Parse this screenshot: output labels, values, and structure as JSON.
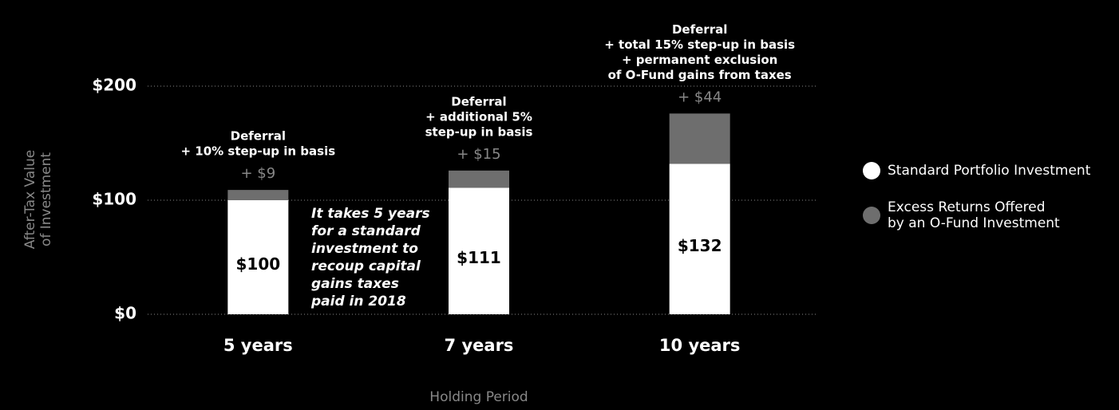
{
  "chart_data": {
    "type": "stacked_bar",
    "categories": [
      "5 years",
      "7 years",
      "10 years"
    ],
    "series": [
      {
        "name": "Standard Portfolio Investment",
        "color": "#ffffff",
        "values": [
          100,
          111,
          132
        ],
        "value_labels": [
          "$100",
          "$111",
          "$132"
        ]
      },
      {
        "name": "Excess Returns Offered by an O-Fund Investment",
        "color": "#6e6e6e",
        "values": [
          9,
          15,
          44
        ],
        "value_labels": [
          "+ $9",
          "+ $15",
          "+ $44"
        ]
      }
    ],
    "ylim": [
      0,
      200
    ],
    "yticks": [
      {
        "value": 0,
        "label": "$0"
      },
      {
        "value": 100,
        "label": "$100"
      },
      {
        "value": 200,
        "label": "$200"
      }
    ],
    "grid": true,
    "y_label": [
      "After-Tax Value",
      "of Investment"
    ],
    "x_label": "Holding Period",
    "annotations": [
      [
        "Deferral",
        "+ 10% step-up in basis"
      ],
      [
        "Deferral",
        "+ additional 5%",
        "step-up in basis"
      ],
      [
        "Deferral",
        "+ total 15% step-up in basis",
        "+ permanent exclusion",
        "of O-Fund gains from taxes"
      ]
    ],
    "note": [
      "It takes 5 years",
      "for a standard",
      "investment to",
      "recoup capital",
      "gains taxes",
      "paid in 2018"
    ],
    "legend": "right"
  }
}
